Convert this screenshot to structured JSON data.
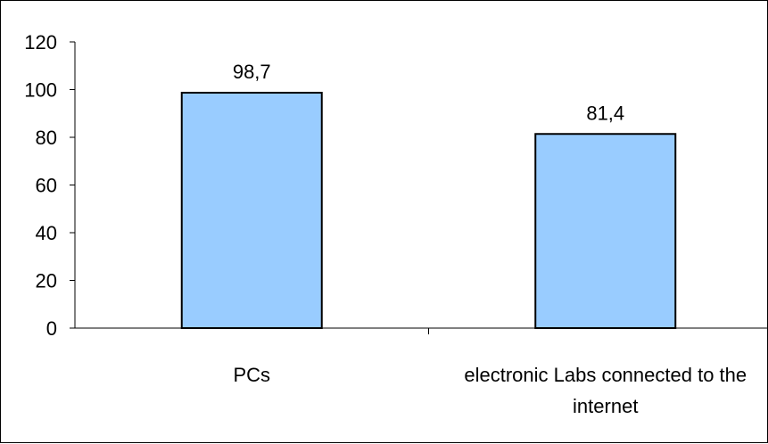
{
  "chart_data": {
    "type": "bar",
    "categories": [
      [
        "PCs"
      ],
      [
        "electronic Labs connected to the",
        "internet"
      ]
    ],
    "values": [
      98.7,
      81.4
    ],
    "data_labels": [
      "98,7",
      "81,4"
    ],
    "ylim": [
      0,
      120
    ],
    "y_ticks": [
      0,
      20,
      40,
      60,
      80,
      100,
      120
    ],
    "y_tick_labels": [
      "0",
      "20",
      "40",
      "60",
      "80",
      "100",
      "120"
    ],
    "grid": false,
    "legend": "none",
    "bar_color": "#99ccff",
    "bar_stroke": "#000000"
  }
}
